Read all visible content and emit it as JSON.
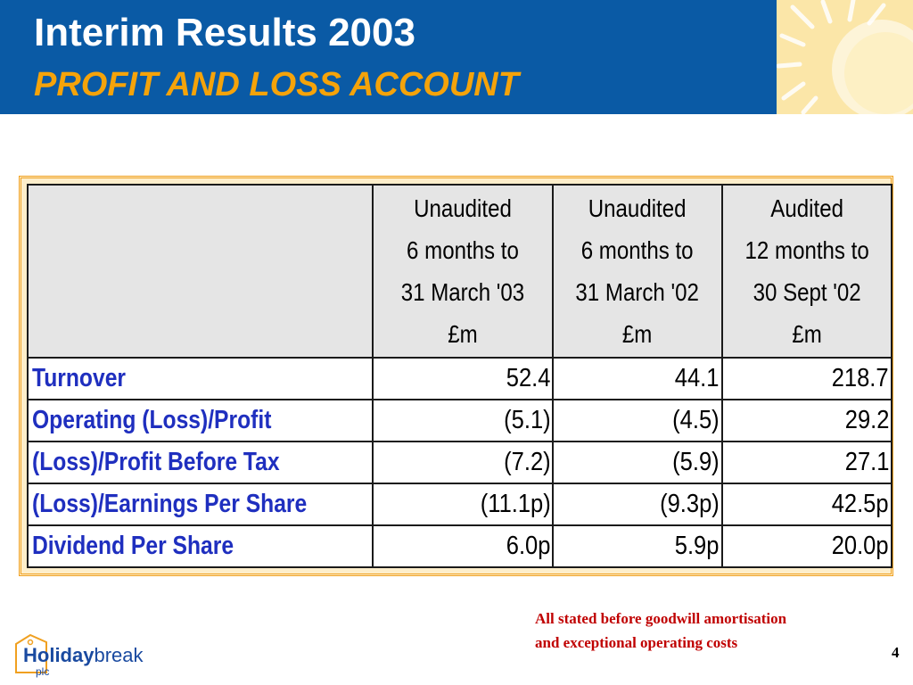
{
  "header": {
    "title": "Interim Results 2003",
    "subtitle": "PROFIT AND LOSS ACCOUNT"
  },
  "colors": {
    "header_band": "#0a5aa5",
    "subtitle": "#f5a30a",
    "row_label": "#1f2fbf",
    "footnote": "#c00000",
    "table_frame": "#f0a020",
    "header_cell_bg": "#e5e5e5"
  },
  "table": {
    "columns": [
      {
        "line1": "Unaudited",
        "line2": "6 months to",
        "line3": "31 March '03",
        "line4": "£m"
      },
      {
        "line1": "Unaudited",
        "line2": "6 months to",
        "line3": "31 March '02",
        "line4": "£m"
      },
      {
        "line1": "Audited",
        "line2": "12 months to",
        "line3": "30 Sept '02",
        "line4": "£m"
      }
    ],
    "rows": [
      {
        "label": "Turnover",
        "values": [
          "52.4",
          "44.1",
          "218.7"
        ]
      },
      {
        "label": "Operating (Loss)/Profit",
        "values": [
          "(5.1)",
          "(4.5)",
          "29.2"
        ]
      },
      {
        "label": "(Loss)/Profit Before Tax",
        "values": [
          "(7.2)",
          "(5.9)",
          "27.1"
        ]
      },
      {
        "label": "(Loss)/Earnings Per Share",
        "values": [
          "(11.1p)",
          "(9.3p)",
          "42.5p"
        ]
      },
      {
        "label": "Dividend Per Share",
        "values": [
          "6.0p",
          "5.9p",
          "20.0p"
        ]
      }
    ]
  },
  "footnote": {
    "line1": "All stated before goodwill amortisation",
    "line2": "and exceptional operating costs"
  },
  "page_number": "4",
  "logo": {
    "word_bold": "Holiday",
    "word_regular": "break",
    "suffix": "plc"
  }
}
